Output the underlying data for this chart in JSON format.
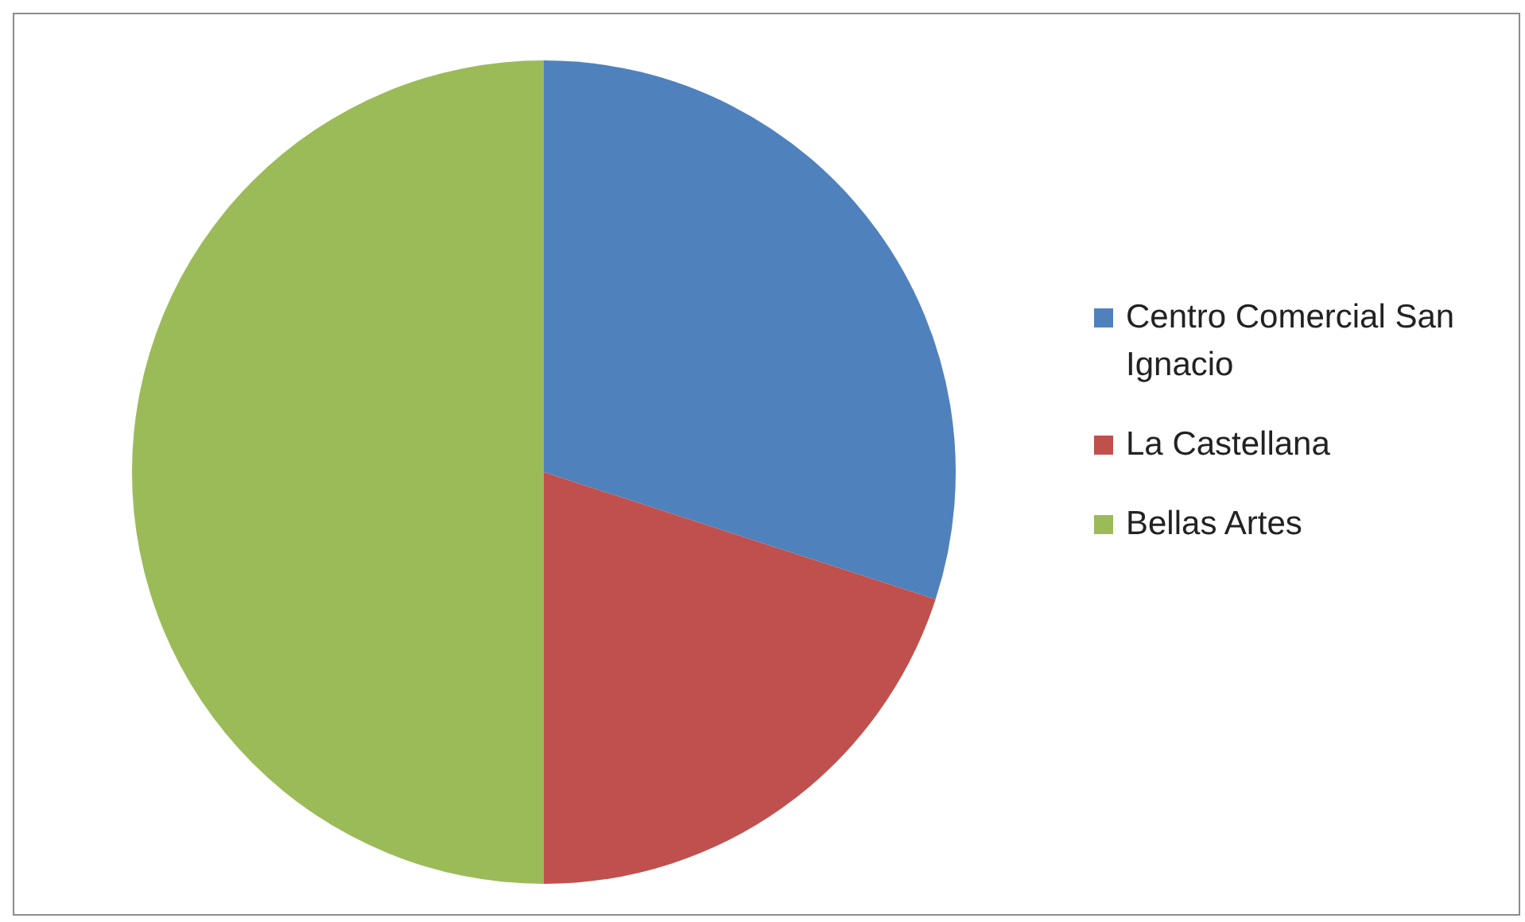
{
  "chart_data": {
    "type": "pie",
    "categories": [
      "Centro Comercial San Ignacio",
      "La Castellana",
      "Bellas Artes"
    ],
    "values": [
      30,
      20,
      50
    ],
    "colors": [
      "#4f81bd",
      "#c0504d",
      "#9bbb59"
    ],
    "legend": "right"
  }
}
